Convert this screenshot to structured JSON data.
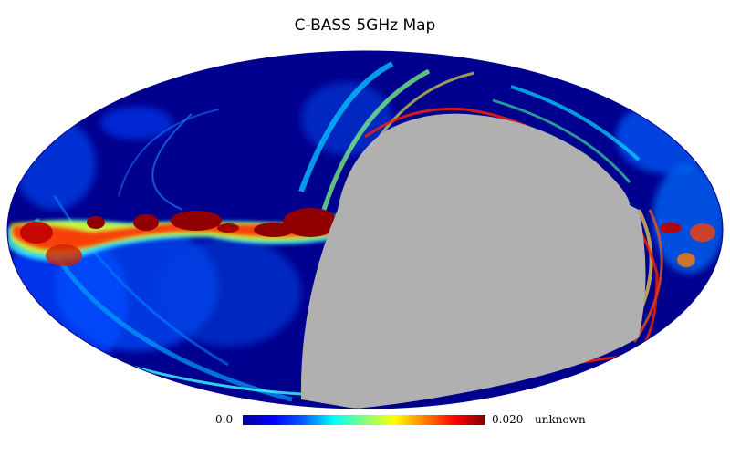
{
  "title": "C-BASS 5GHz Map",
  "colorbar": {
    "min_label": "0.0",
    "max_label": "0.020",
    "unit_label": "unknown",
    "colormap": [
      "#00008f",
      "#0000ff",
      "#0060ff",
      "#00ffff",
      "#7fff7f",
      "#ffff00",
      "#ff8000",
      "#ff0000",
      "#800000"
    ]
  },
  "map": {
    "projection": "Mollweide",
    "background_color": "#00008f",
    "mask_color": "#b0b0b0",
    "min_value": 0.0,
    "max_value": 0.02
  }
}
